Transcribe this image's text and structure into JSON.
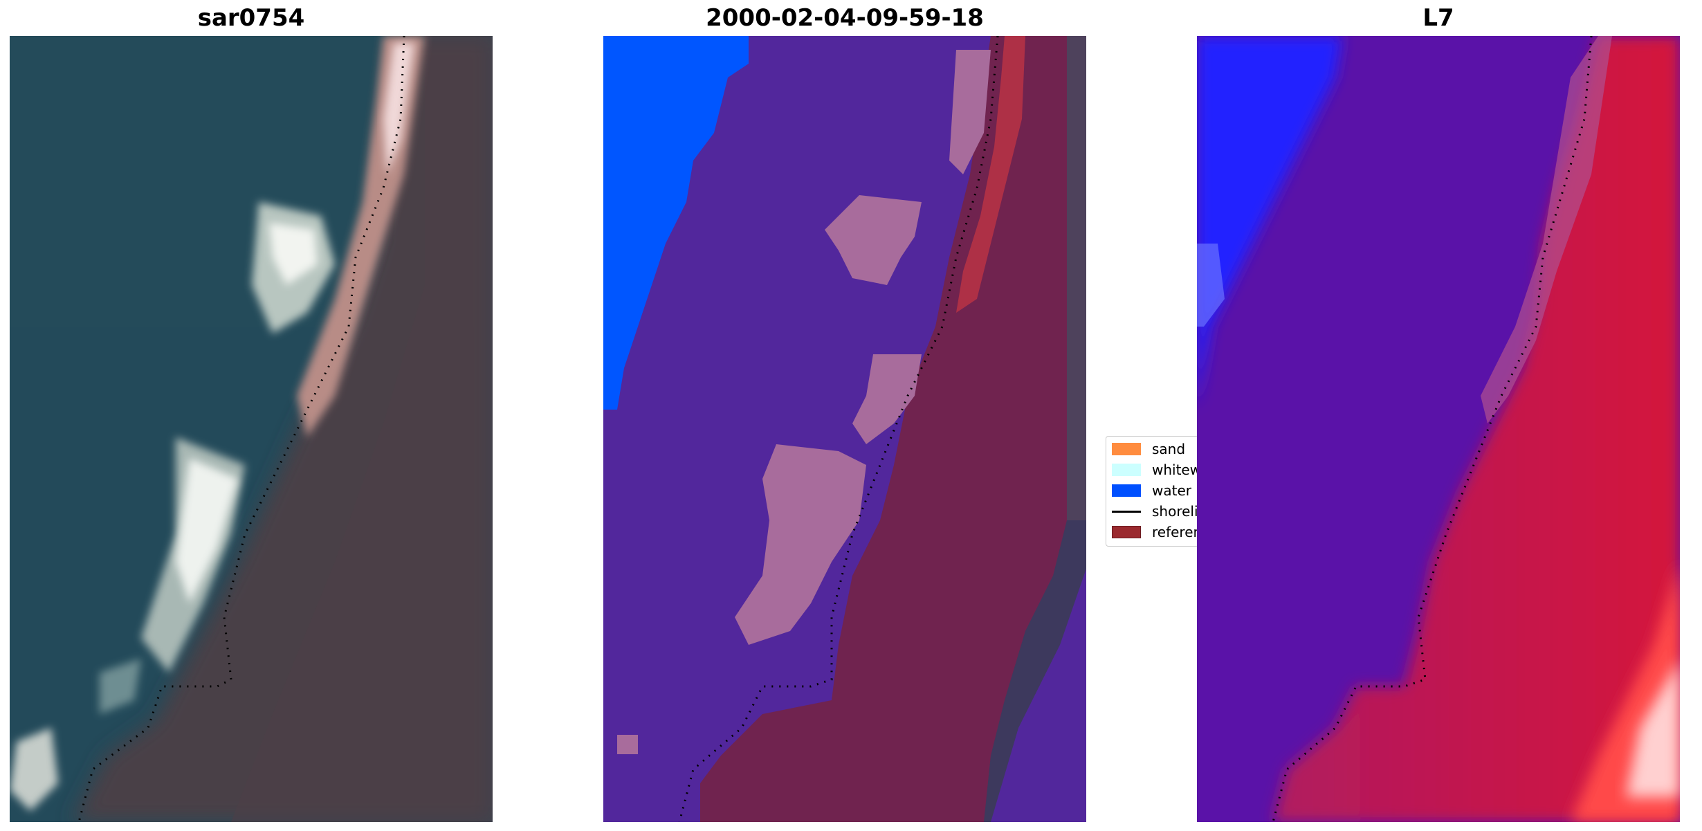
{
  "panels": [
    {
      "title": "sar0754",
      "kind": "rgb-satellite"
    },
    {
      "title": "2000-02-04-09-59-18",
      "kind": "classified"
    },
    {
      "title": "L7",
      "kind": "water-index"
    }
  ],
  "legend": {
    "items": [
      {
        "label": "sand",
        "color": "#ff8c3f",
        "kind": "patch"
      },
      {
        "label": "whitewater",
        "color": "#ccffff",
        "kind": "patch"
      },
      {
        "label": "water",
        "color": "#0050ff",
        "kind": "patch"
      },
      {
        "label": "shoreline",
        "color": "#000000",
        "kind": "line"
      },
      {
        "label": "reference shoreline",
        "color": "#9b2a2f",
        "kind": "patch"
      }
    ]
  },
  "colors": {
    "sea_dark": "#1f4556",
    "land_brown": "#4a4046",
    "classified_water_other": "#52279c",
    "classified_land": "#70234f",
    "classified_white": "#a86c9c",
    "index_blue": "#2020ff",
    "index_purple": "#5a12a8",
    "index_red": "#c8174a"
  }
}
